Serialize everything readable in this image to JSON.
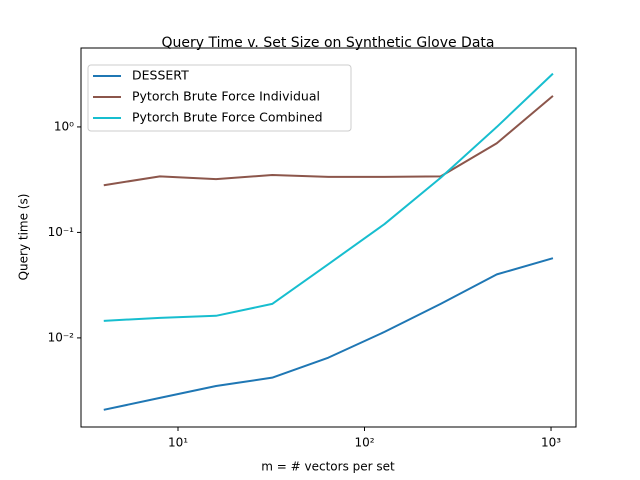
{
  "chart_data": {
    "type": "line",
    "title": "Query Time v. Set Size on Synthetic Glove Data",
    "x_label": "m = # vectors per set",
    "y_label": "Query time (s)",
    "x": [
      4,
      8,
      16,
      32,
      64,
      128,
      256,
      512,
      1024
    ],
    "series": [
      {
        "name": "DESSERT",
        "color": "#1f77b4",
        "values": [
          0.00208,
          0.0027,
          0.0035,
          0.0042,
          0.0065,
          0.0114,
          0.021,
          0.04,
          0.057
        ]
      },
      {
        "name": "Pytorch Brute Force Individual",
        "color": "#8c564b",
        "values": [
          0.28,
          0.34,
          0.32,
          0.35,
          0.336,
          0.336,
          0.34,
          0.7,
          1.97
        ]
      },
      {
        "name": "Pytorch Brute Force Combined",
        "color": "#17becf",
        "values": [
          0.0145,
          0.0155,
          0.0162,
          0.021,
          0.05,
          0.12,
          0.33,
          1.0,
          3.2
        ]
      }
    ],
    "xscale": "log",
    "yscale": "log",
    "xlim": [
      3.02,
      1361
    ],
    "ylim": [
      0.00143,
      5.6
    ],
    "xticks": [
      {
        "value": 10,
        "label": "10¹"
      },
      {
        "value": 100,
        "label": "10²"
      },
      {
        "value": 1000,
        "label": "10³"
      }
    ],
    "yticks": [
      {
        "value": 0.01,
        "label": "10⁻²"
      },
      {
        "value": 0.1,
        "label": "10⁻¹"
      },
      {
        "value": 1,
        "label": "10⁰"
      }
    ],
    "legend": "upper left",
    "grid": false
  }
}
